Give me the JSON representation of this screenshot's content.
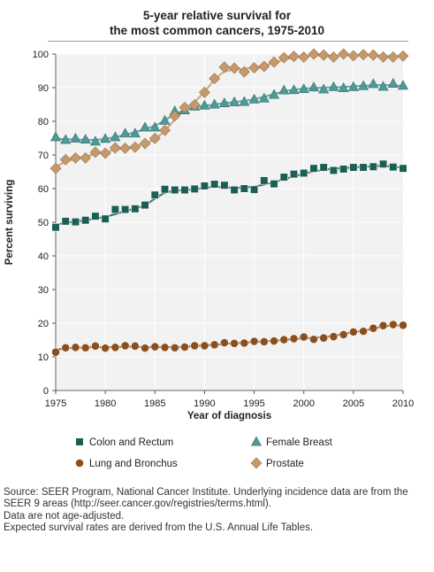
{
  "title_lines": [
    "5-year relative survival for",
    "the most common cancers, 1975-2010"
  ],
  "chart_data": {
    "type": "scatter",
    "title": "5-year relative survival for the most common cancers, 1975-2010",
    "xlabel": "Year of diagnosis",
    "ylabel": "Percent surviving",
    "xlim": [
      1975,
      2010
    ],
    "ylim": [
      0,
      100
    ],
    "x_ticks": [
      1975,
      1980,
      1985,
      1990,
      1995,
      2000,
      2005,
      2010
    ],
    "y_ticks": [
      0,
      10,
      20,
      30,
      40,
      50,
      60,
      70,
      80,
      90,
      100
    ],
    "grid": true,
    "legend_position": "bottom",
    "x": [
      1975,
      1976,
      1977,
      1978,
      1979,
      1980,
      1981,
      1982,
      1983,
      1984,
      1985,
      1986,
      1987,
      1988,
      1989,
      1990,
      1991,
      1992,
      1993,
      1994,
      1995,
      1996,
      1997,
      1998,
      1999,
      2000,
      2001,
      2002,
      2003,
      2004,
      2005,
      2006,
      2007,
      2008,
      2009,
      2010
    ],
    "series": [
      {
        "name": "Colon and Rectum",
        "marker": "square",
        "color": "#1d5e52",
        "values": [
          48.5,
          50.3,
          50.1,
          50.6,
          51.8,
          51.0,
          53.8,
          53.8,
          54.0,
          55.1,
          58.1,
          59.8,
          59.6,
          59.6,
          59.9,
          60.8,
          61.3,
          61.0,
          59.6,
          60.0,
          59.7,
          62.4,
          61.4,
          63.4,
          64.3,
          64.6,
          66.0,
          66.3,
          65.4,
          65.8,
          66.3,
          66.3,
          66.5,
          67.3,
          66.4,
          66.0
        ],
        "trend": [
          49.3,
          49.8,
          50.2,
          50.6,
          51.1,
          51.6,
          52.4,
          53.3,
          54.1,
          55.1,
          57.0,
          58.7,
          59.3,
          59.6,
          59.8,
          60.2,
          60.5,
          60.4,
          60.2,
          60.3,
          60.6,
          61.2,
          61.9,
          62.8,
          63.6,
          64.4,
          65.1,
          65.6,
          65.9,
          66.1,
          66.3,
          66.5,
          66.6,
          66.8,
          66.5,
          66.2
        ]
      },
      {
        "name": "Female Breast",
        "marker": "triangle",
        "color": "#4f9a96",
        "values": [
          75.3,
          74.5,
          74.9,
          74.6,
          74.0,
          74.8,
          75.3,
          76.4,
          76.4,
          78.2,
          78.2,
          80.2,
          83.0,
          83.3,
          84.4,
          84.7,
          85.0,
          85.4,
          85.7,
          85.8,
          86.5,
          86.8,
          87.9,
          89.2,
          89.3,
          89.6,
          90.1,
          89.5,
          90.2,
          89.9,
          90.2,
          90.5,
          91.1,
          90.3,
          91.2,
          90.6
        ],
        "trend": [
          74.8,
          74.7,
          74.6,
          74.5,
          74.5,
          74.8,
          75.3,
          76.0,
          76.8,
          77.7,
          78.7,
          80.3,
          82.1,
          83.3,
          84.1,
          84.6,
          85.0,
          85.4,
          85.7,
          86.1,
          86.6,
          87.3,
          88.1,
          88.9,
          89.4,
          89.7,
          89.9,
          90.0,
          90.1,
          90.2,
          90.4,
          90.6,
          90.7,
          90.8,
          90.7,
          90.5
        ]
      },
      {
        "name": "Lung and Bronchus",
        "marker": "circle",
        "color": "#8a4f1d",
        "values": [
          11.4,
          12.7,
          12.8,
          12.7,
          13.2,
          12.6,
          12.8,
          13.3,
          13.2,
          12.6,
          13.0,
          12.8,
          12.7,
          12.9,
          13.3,
          13.3,
          13.6,
          14.2,
          14.0,
          14.1,
          14.6,
          14.5,
          14.7,
          15.1,
          15.4,
          15.9,
          15.2,
          15.6,
          16.0,
          16.6,
          17.4,
          17.6,
          18.5,
          19.3,
          19.6,
          19.4
        ],
        "trend": [
          12.1,
          12.5,
          12.7,
          12.8,
          12.9,
          12.9,
          12.9,
          13.0,
          13.0,
          12.9,
          12.9,
          12.9,
          12.9,
          13.0,
          13.2,
          13.4,
          13.6,
          13.8,
          14.0,
          14.2,
          14.4,
          14.6,
          14.8,
          15.0,
          15.3,
          15.5,
          15.7,
          15.9,
          16.3,
          16.8,
          17.3,
          17.8,
          18.4,
          19.0,
          19.3,
          19.4
        ]
      },
      {
        "name": "Prostate",
        "marker": "diamond",
        "color": "#c49a6c",
        "values": [
          66.0,
          68.6,
          69.1,
          69.1,
          70.8,
          70.5,
          72.1,
          72.0,
          72.3,
          73.4,
          74.9,
          77.3,
          81.6,
          84.1,
          84.9,
          88.6,
          92.7,
          96.1,
          95.8,
          94.7,
          95.9,
          96.3,
          97.6,
          98.9,
          99.3,
          99.1,
          100.0,
          99.7,
          99.1,
          100.0,
          99.5,
          99.8,
          99.7,
          99.1,
          99.1,
          99.4
        ],
        "trend": [
          66.5,
          67.9,
          68.9,
          69.6,
          70.3,
          70.9,
          71.5,
          72.0,
          72.6,
          73.4,
          74.8,
          77.2,
          80.5,
          83.5,
          85.8,
          88.8,
          92.3,
          94.7,
          95.3,
          95.6,
          96.0,
          96.6,
          97.4,
          98.3,
          98.9,
          99.3,
          99.5,
          99.5,
          99.5,
          99.6,
          99.6,
          99.6,
          99.6,
          99.4,
          99.3,
          99.3
        ]
      }
    ]
  },
  "legend_order": [
    0,
    2,
    1,
    3
  ],
  "source_lines": [
    "Source: SEER Program, National Cancer Institute. Underlying incidence data are from the",
    "SEER 9 areas (http://seer.cancer.gov/registries/terms.html).",
    "Data are not age-adjusted.",
    "Expected survival rates are derived from the U.S. Annual Life Tables."
  ]
}
